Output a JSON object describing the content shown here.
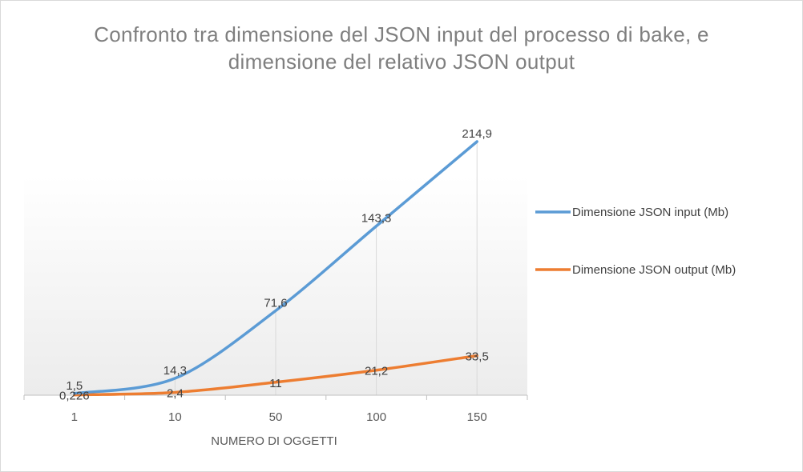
{
  "chart_data": {
    "type": "line",
    "title_lines": [
      "Confronto tra dimensione del JSON input del processo di bake, e",
      "dimensione del relativo JSON output"
    ],
    "xlabel": "NUMERO DI OGGETTI",
    "ylabel": "",
    "categories": [
      "1",
      "10",
      "50",
      "100",
      "150"
    ],
    "ylim": [
      0,
      214.9
    ],
    "grid": "vertical drop lines",
    "legend_position": "right",
    "series": [
      {
        "name": "Dimensione JSON input (Mb)",
        "color": "#5b9bd5",
        "values": [
          1.5,
          14.3,
          71.6,
          143.3,
          214.9
        ],
        "labels": [
          "1,5",
          "14,3",
          "71,6",
          "143,3",
          "214,9"
        ]
      },
      {
        "name": "Dimensione JSON output (Mb)",
        "color": "#ed7d31",
        "values": [
          0.226,
          2.4,
          11,
          21.2,
          33.5
        ],
        "labels": [
          "0,226",
          "2,4",
          "11",
          "21,2",
          "33,5"
        ]
      }
    ]
  }
}
